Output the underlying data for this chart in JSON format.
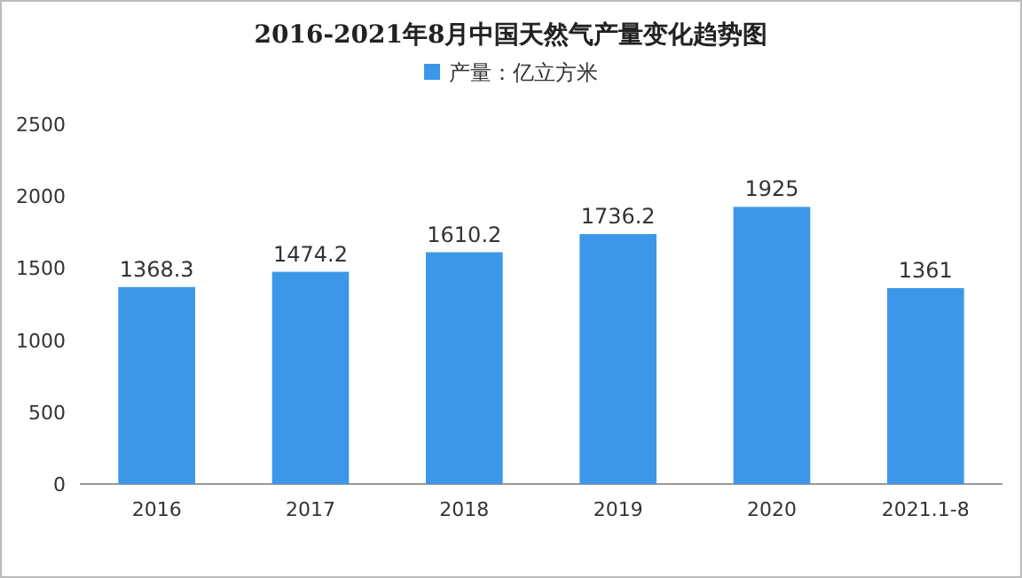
{
  "chart_data": {
    "type": "bar",
    "title": "2016-2021年8月中国天然气产量变化趋势图",
    "categories": [
      "2016",
      "2017",
      "2018",
      "2019",
      "2020",
      "2021.1-8"
    ],
    "series": [
      {
        "name": "产量：亿立方米",
        "color": "#3d97e8",
        "values": [
          1368.3,
          1474.2,
          1610.2,
          1736.2,
          1925,
          1361
        ]
      }
    ],
    "ylim": [
      0,
      2500
    ],
    "yticks": [
      0,
      500,
      1000,
      1500,
      2000,
      2500
    ],
    "data_labels": true,
    "legend": "top",
    "grid": false
  }
}
